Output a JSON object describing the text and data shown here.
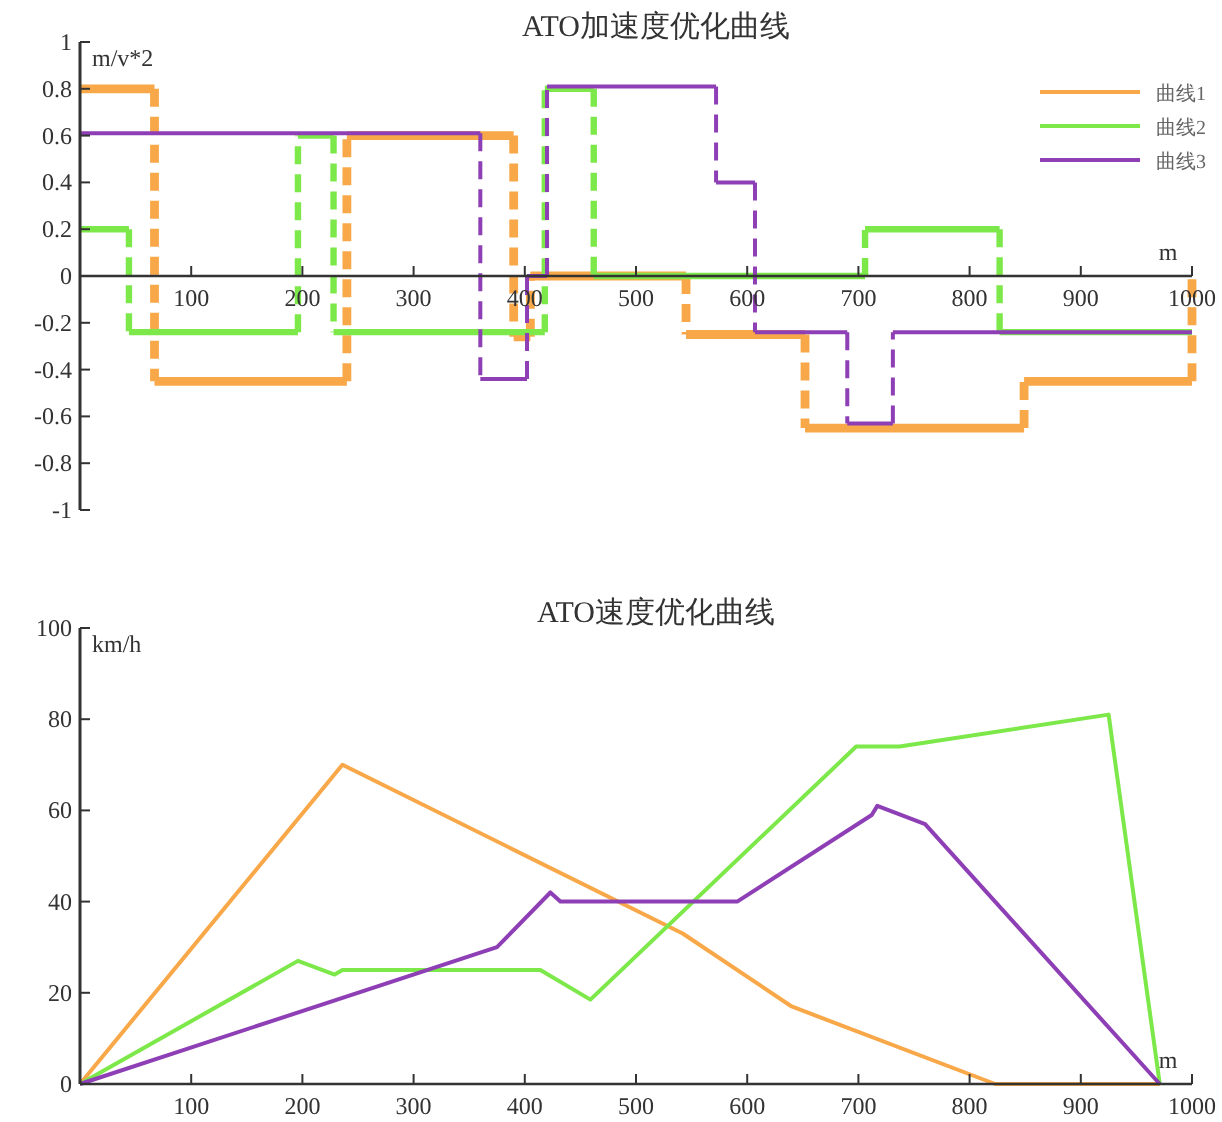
{
  "chart_data": [
    {
      "type": "step",
      "title": "ATO加速度优化曲线",
      "xlabel": "m",
      "ylabel": "m/v*2",
      "xlim": [
        0,
        1000
      ],
      "ylim": [
        -1,
        1
      ],
      "xticks": [
        100,
        200,
        300,
        400,
        500,
        600,
        700,
        800,
        900,
        1000
      ],
      "yticks": [
        -1,
        -0.8,
        -0.6,
        -0.4,
        -0.2,
        0,
        0.2,
        0.4,
        0.6,
        0.8,
        1
      ],
      "legend": "top right",
      "grid": false,
      "series": [
        {
          "name": "曲线1",
          "color": "#f8a848",
          "x": [
            0,
            67,
            240,
            390,
            405,
            545,
            652,
            849,
            1000
          ],
          "values": [
            0.8,
            -0.45,
            0.6,
            -0.26,
            0,
            -0.25,
            -0.65,
            -0.45,
            0
          ]
        },
        {
          "name": "曲线2",
          "color": "#7de84a",
          "x": [
            0,
            44,
            196,
            228,
            418,
            462,
            706,
            827,
            1000
          ],
          "values": [
            0.2,
            -0.24,
            0.6,
            -0.24,
            0.8,
            0,
            0.2,
            -0.24,
            -0.24
          ]
        },
        {
          "name": "曲线3",
          "color": "#8e3fb5",
          "x": [
            0,
            360,
            402,
            420,
            572,
            607,
            690,
            731,
            1000
          ],
          "values": [
            0.61,
            -0.44,
            0,
            0.81,
            0.4,
            -0.24,
            -0.63,
            -0.24,
            -0.24
          ]
        }
      ]
    },
    {
      "type": "line",
      "title": "ATO速度优化曲线",
      "xlabel": "m",
      "ylabel": "km/h",
      "xlim": [
        0,
        1000
      ],
      "ylim": [
        0,
        100
      ],
      "xticks": [
        100,
        200,
        300,
        400,
        500,
        600,
        700,
        800,
        900,
        1000
      ],
      "yticks": [
        0,
        20,
        40,
        60,
        80,
        100
      ],
      "legend": false,
      "grid": false,
      "series": [
        {
          "color": "#f8a848",
          "x": [
            0,
            236,
            542,
            640,
            823,
            971
          ],
          "values": [
            0,
            70,
            33,
            17,
            0,
            0
          ]
        },
        {
          "color": "#7de84a",
          "x": [
            0,
            196,
            229,
            236,
            414,
            459,
            698,
            737,
            925,
            971
          ],
          "values": [
            0,
            27,
            24,
            25,
            25,
            18.5,
            74,
            74,
            81,
            0
          ]
        },
        {
          "color": "#8e3fb5",
          "x": [
            0,
            375,
            423,
            432,
            591,
            712,
            717,
            760,
            971
          ],
          "values": [
            0,
            30,
            42,
            40,
            40,
            59,
            61,
            57,
            0
          ]
        }
      ]
    }
  ]
}
